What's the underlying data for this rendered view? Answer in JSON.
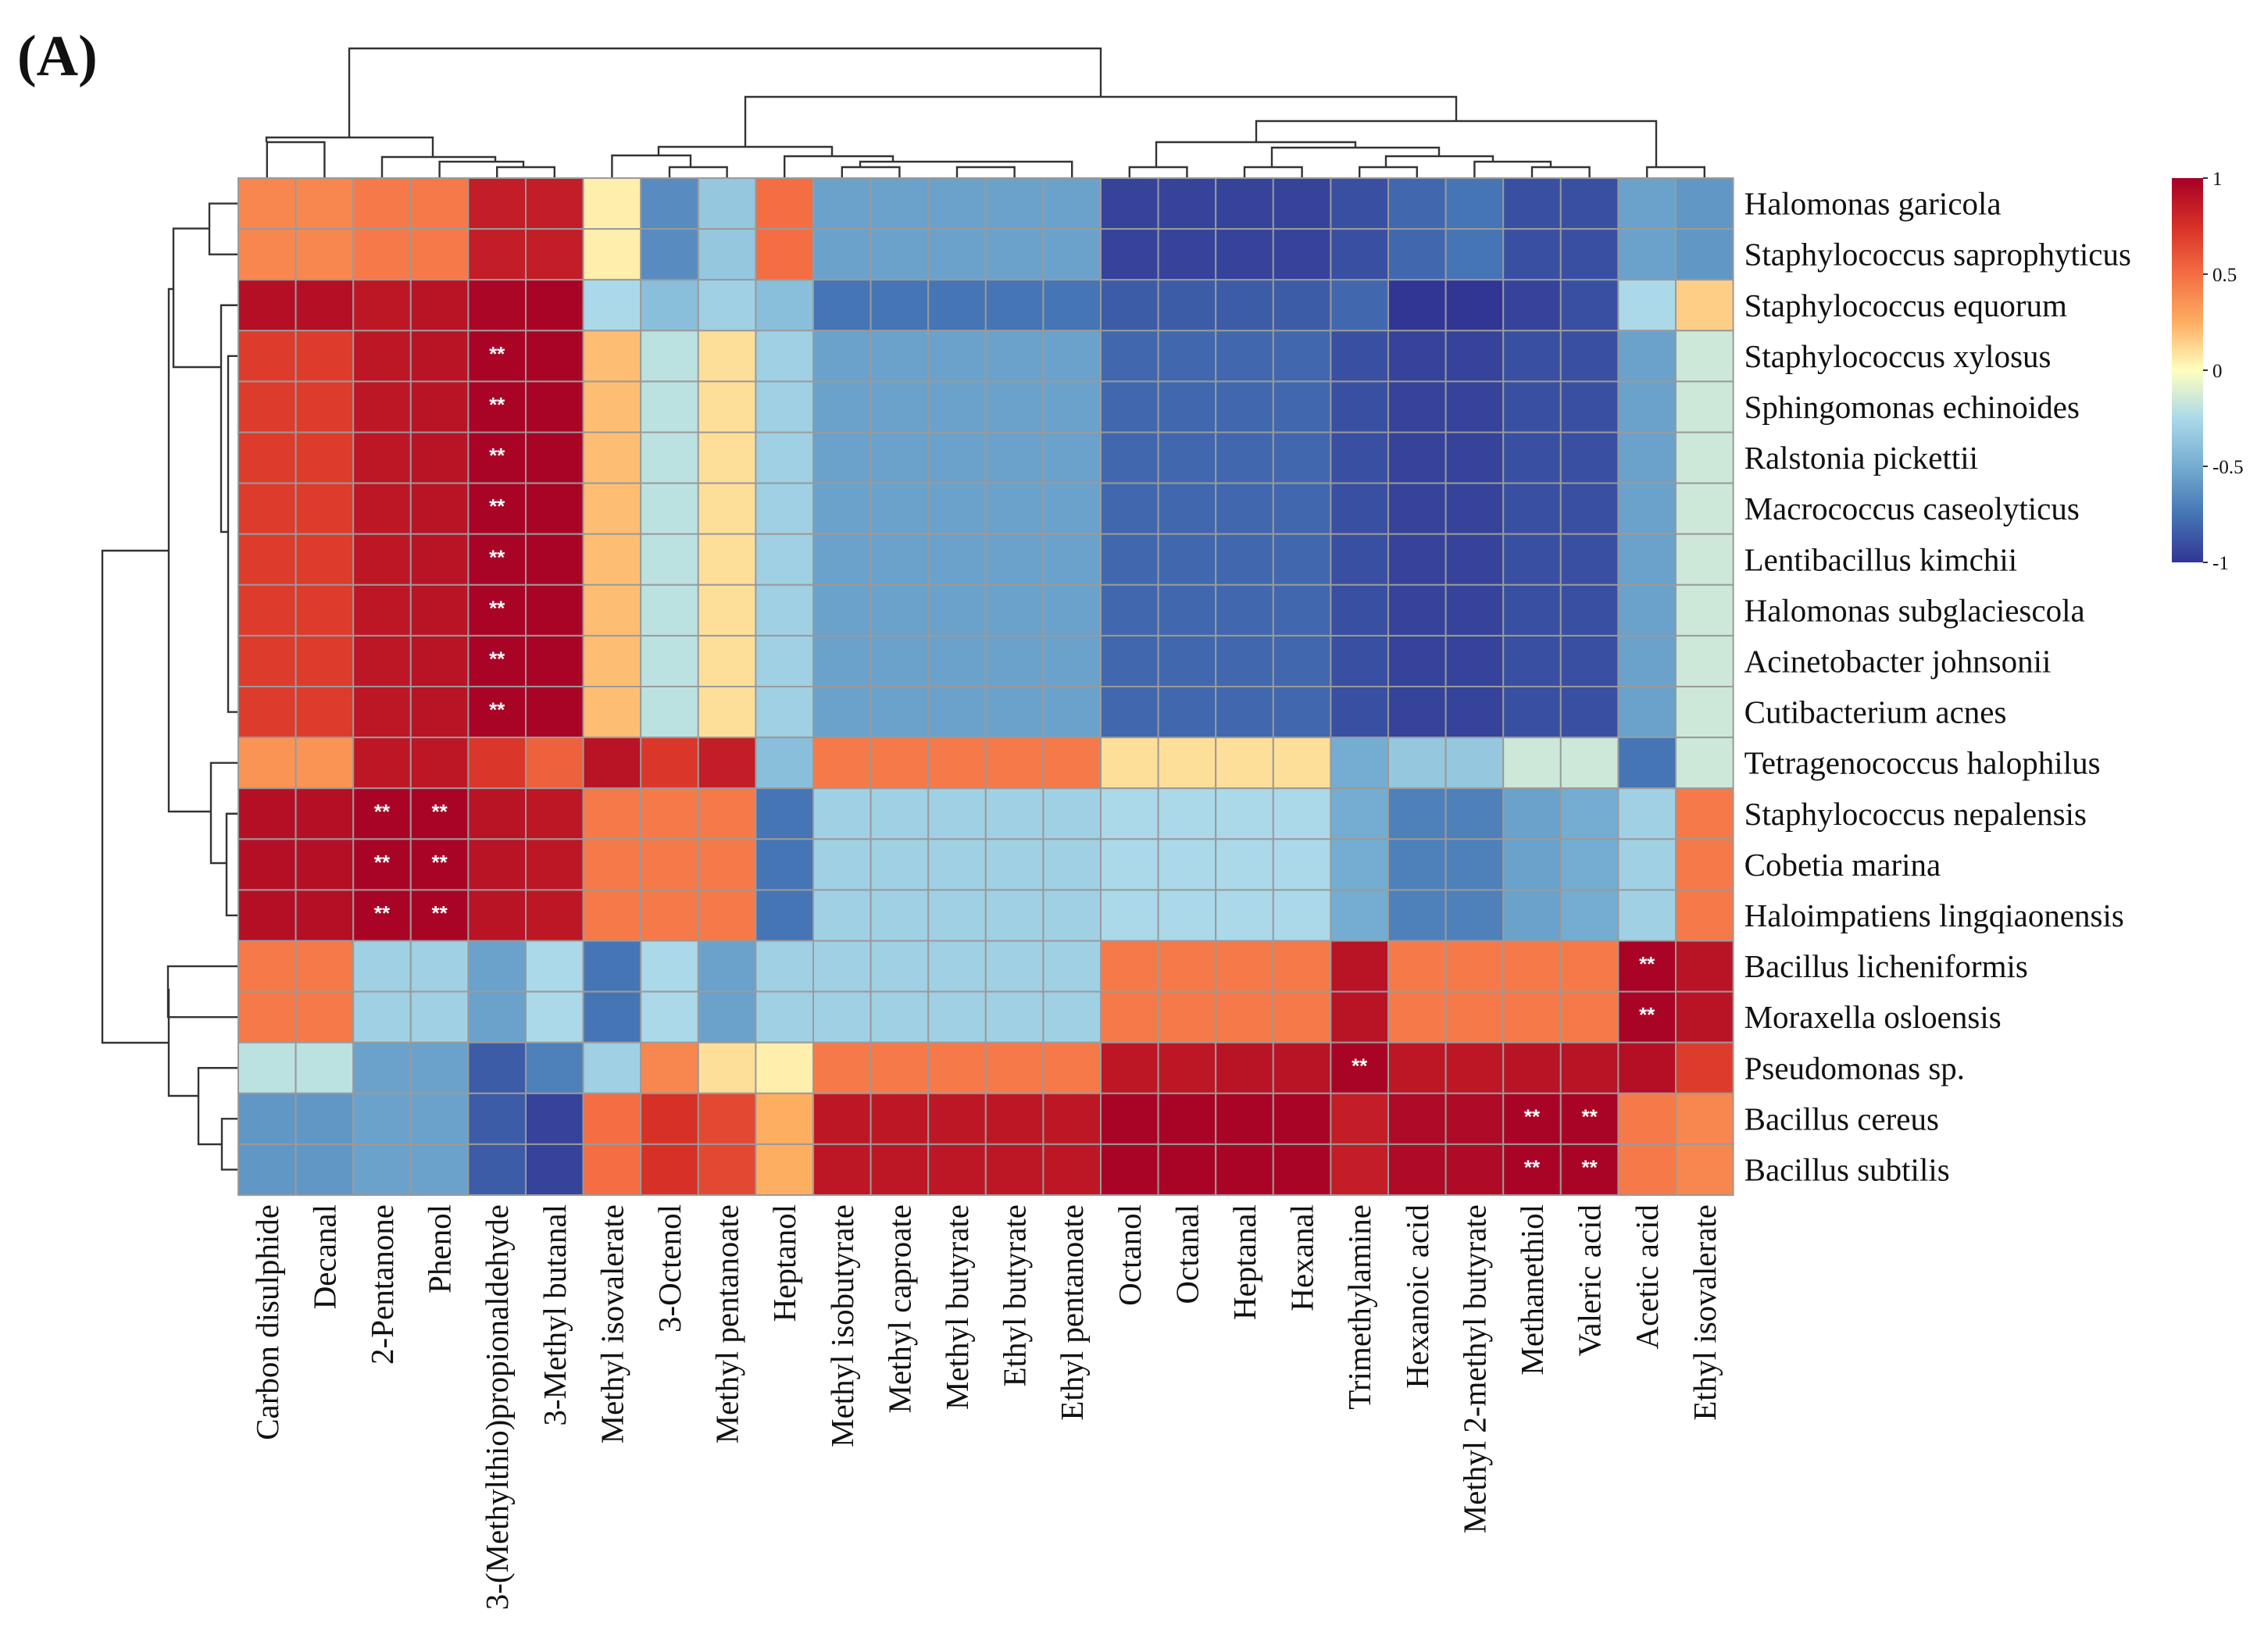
{
  "panel_label": "(A)",
  "chart_data": {
    "type": "heatmap",
    "title": "",
    "rows": [
      "Halomonas garicola",
      "Staphylococcus saprophyticus",
      "Staphylococcus equorum",
      "Staphylococcus xylosus",
      "Sphingomonas echinoides",
      "Ralstonia pickettii",
      "Macrococcus caseolyticus",
      "Lentibacillus kimchii",
      "Halomonas subglaciescola",
      "Acinetobacter johnsonii",
      "Cutibacterium acnes",
      "Tetragenococcus halophilus",
      "Staphylococcus nepalensis",
      "Cobetia marina",
      "Haloimpatiens lingqiaonensis",
      "Bacillus licheniformis",
      "Moraxella osloensis",
      "Pseudomonas sp.",
      "Bacillus cereus",
      "Bacillus subtilis"
    ],
    "columns": [
      "Carbon disulphide",
      "Decanal",
      "2-Pentanone",
      "Phenol",
      "3-(Methylthio)propionaldehyde",
      "3-Methyl butanal",
      "Methyl isovalerate",
      "3-Octenol",
      "Methyl pentanoate",
      "Heptanol",
      "Methyl isobutyrate",
      "Methyl caproate",
      "Methyl butyrate",
      "Ethyl butyrate",
      "Ethyl pentanoate",
      "Octanol",
      "Octanal",
      "Heptanal",
      "Hexanal",
      "Trimethylamine",
      "Hexanoic acid",
      "Methyl 2-methyl butyrate",
      "Methanethiol",
      "Valeric acid",
      "Acetic acid",
      "Ethyl isovalerate"
    ],
    "values": [
      [
        0.4,
        0.4,
        0.45,
        0.45,
        0.85,
        0.85,
        0.05,
        -0.65,
        -0.35,
        0.5,
        -0.55,
        -0.55,
        -0.55,
        -0.55,
        -0.55,
        -0.95,
        -0.95,
        -0.95,
        -0.95,
        -0.9,
        -0.8,
        -0.75,
        -0.9,
        -0.9,
        -0.55,
        -0.6
      ],
      [
        0.4,
        0.4,
        0.45,
        0.45,
        0.85,
        0.85,
        0.05,
        -0.65,
        -0.35,
        0.5,
        -0.55,
        -0.55,
        -0.55,
        -0.55,
        -0.55,
        -0.95,
        -0.95,
        -0.95,
        -0.95,
        -0.9,
        -0.8,
        -0.75,
        -0.9,
        -0.9,
        -0.55,
        -0.6
      ],
      [
        0.92,
        0.92,
        0.88,
        0.9,
        0.97,
        0.98,
        -0.25,
        -0.4,
        -0.3,
        -0.4,
        -0.75,
        -0.75,
        -0.75,
        -0.75,
        -0.75,
        -0.85,
        -0.85,
        -0.85,
        -0.85,
        -0.8,
        -1.0,
        -1.0,
        -0.95,
        -0.9,
        -0.25,
        0.15
      ],
      [
        0.7,
        0.7,
        0.88,
        0.9,
        0.98,
        0.98,
        0.2,
        -0.2,
        0.1,
        -0.3,
        -0.55,
        -0.55,
        -0.55,
        -0.55,
        -0.55,
        -0.8,
        -0.8,
        -0.8,
        -0.8,
        -0.9,
        -0.95,
        -0.95,
        -0.9,
        -0.9,
        -0.55,
        -0.15
      ],
      [
        0.7,
        0.7,
        0.88,
        0.9,
        0.98,
        0.98,
        0.2,
        -0.2,
        0.1,
        -0.3,
        -0.55,
        -0.55,
        -0.55,
        -0.55,
        -0.55,
        -0.8,
        -0.8,
        -0.8,
        -0.8,
        -0.9,
        -0.95,
        -0.95,
        -0.9,
        -0.9,
        -0.55,
        -0.15
      ],
      [
        0.7,
        0.7,
        0.88,
        0.9,
        0.98,
        0.98,
        0.2,
        -0.2,
        0.1,
        -0.3,
        -0.55,
        -0.55,
        -0.55,
        -0.55,
        -0.55,
        -0.8,
        -0.8,
        -0.8,
        -0.8,
        -0.9,
        -0.95,
        -0.95,
        -0.9,
        -0.9,
        -0.55,
        -0.15
      ],
      [
        0.7,
        0.7,
        0.88,
        0.9,
        0.98,
        0.98,
        0.2,
        -0.2,
        0.1,
        -0.3,
        -0.55,
        -0.55,
        -0.55,
        -0.55,
        -0.55,
        -0.8,
        -0.8,
        -0.8,
        -0.8,
        -0.9,
        -0.95,
        -0.95,
        -0.9,
        -0.9,
        -0.55,
        -0.15
      ],
      [
        0.7,
        0.7,
        0.88,
        0.9,
        0.98,
        0.98,
        0.2,
        -0.2,
        0.1,
        -0.3,
        -0.55,
        -0.55,
        -0.55,
        -0.55,
        -0.55,
        -0.8,
        -0.8,
        -0.8,
        -0.8,
        -0.9,
        -0.95,
        -0.95,
        -0.9,
        -0.9,
        -0.55,
        -0.15
      ],
      [
        0.7,
        0.7,
        0.88,
        0.9,
        0.98,
        0.98,
        0.2,
        -0.2,
        0.1,
        -0.3,
        -0.55,
        -0.55,
        -0.55,
        -0.55,
        -0.55,
        -0.8,
        -0.8,
        -0.8,
        -0.8,
        -0.9,
        -0.95,
        -0.95,
        -0.9,
        -0.9,
        -0.55,
        -0.15
      ],
      [
        0.7,
        0.7,
        0.88,
        0.9,
        0.98,
        0.98,
        0.2,
        -0.2,
        0.1,
        -0.3,
        -0.55,
        -0.55,
        -0.55,
        -0.55,
        -0.55,
        -0.8,
        -0.8,
        -0.8,
        -0.8,
        -0.9,
        -0.95,
        -0.95,
        -0.9,
        -0.9,
        -0.55,
        -0.15
      ],
      [
        0.7,
        0.7,
        0.88,
        0.9,
        0.98,
        0.98,
        0.2,
        -0.2,
        0.1,
        -0.3,
        -0.55,
        -0.55,
        -0.55,
        -0.55,
        -0.55,
        -0.8,
        -0.8,
        -0.8,
        -0.8,
        -0.9,
        -0.95,
        -0.95,
        -0.9,
        -0.9,
        -0.55,
        -0.15
      ],
      [
        0.35,
        0.35,
        0.88,
        0.88,
        0.72,
        0.55,
        0.9,
        0.72,
        0.85,
        -0.4,
        0.45,
        0.45,
        0.45,
        0.45,
        0.45,
        0.1,
        0.1,
        0.1,
        0.1,
        -0.5,
        -0.35,
        -0.35,
        -0.15,
        -0.15,
        -0.75,
        -0.15
      ],
      [
        0.92,
        0.92,
        0.98,
        0.98,
        0.9,
        0.88,
        0.45,
        0.45,
        0.45,
        -0.75,
        -0.3,
        -0.3,
        -0.3,
        -0.3,
        -0.3,
        -0.25,
        -0.25,
        -0.25,
        -0.25,
        -0.5,
        -0.7,
        -0.7,
        -0.55,
        -0.5,
        -0.3,
        0.45
      ],
      [
        0.92,
        0.92,
        0.98,
        0.98,
        0.9,
        0.88,
        0.45,
        0.45,
        0.45,
        -0.75,
        -0.3,
        -0.3,
        -0.3,
        -0.3,
        -0.3,
        -0.25,
        -0.25,
        -0.25,
        -0.25,
        -0.5,
        -0.7,
        -0.7,
        -0.55,
        -0.5,
        -0.3,
        0.45
      ],
      [
        0.92,
        0.92,
        0.98,
        0.98,
        0.9,
        0.88,
        0.45,
        0.45,
        0.45,
        -0.75,
        -0.3,
        -0.3,
        -0.3,
        -0.3,
        -0.3,
        -0.25,
        -0.25,
        -0.25,
        -0.25,
        -0.5,
        -0.7,
        -0.7,
        -0.55,
        -0.5,
        -0.3,
        0.45
      ],
      [
        0.45,
        0.45,
        -0.3,
        -0.3,
        -0.55,
        -0.25,
        -0.75,
        -0.25,
        -0.55,
        -0.3,
        -0.3,
        -0.3,
        -0.3,
        -0.3,
        -0.3,
        0.45,
        0.45,
        0.45,
        0.45,
        0.9,
        0.45,
        0.45,
        0.45,
        0.45,
        0.98,
        0.9
      ],
      [
        0.45,
        0.45,
        -0.3,
        -0.3,
        -0.55,
        -0.25,
        -0.75,
        -0.25,
        -0.55,
        -0.3,
        -0.3,
        -0.3,
        -0.3,
        -0.3,
        -0.3,
        0.45,
        0.45,
        0.45,
        0.45,
        0.9,
        0.45,
        0.45,
        0.45,
        0.45,
        0.98,
        0.9
      ],
      [
        -0.2,
        -0.2,
        -0.55,
        -0.55,
        -0.85,
        -0.7,
        -0.3,
        0.4,
        0.1,
        0.05,
        0.45,
        0.45,
        0.45,
        0.45,
        0.45,
        0.88,
        0.88,
        0.9,
        0.9,
        0.98,
        0.88,
        0.88,
        0.9,
        0.9,
        0.92,
        0.7
      ],
      [
        -0.6,
        -0.6,
        -0.55,
        -0.55,
        -0.85,
        -0.95,
        0.5,
        0.75,
        0.65,
        0.25,
        0.88,
        0.88,
        0.88,
        0.88,
        0.88,
        0.98,
        0.98,
        0.98,
        0.98,
        0.85,
        0.95,
        0.95,
        0.98,
        0.98,
        0.45,
        0.4
      ],
      [
        -0.6,
        -0.6,
        -0.55,
        -0.55,
        -0.85,
        -0.95,
        0.5,
        0.75,
        0.65,
        0.25,
        0.88,
        0.88,
        0.88,
        0.88,
        0.88,
        0.98,
        0.98,
        0.98,
        0.98,
        0.85,
        0.95,
        0.95,
        0.98,
        0.98,
        0.45,
        0.4
      ]
    ],
    "significance": [
      [
        3,
        4
      ],
      [
        4,
        4
      ],
      [
        5,
        4
      ],
      [
        6,
        4
      ],
      [
        7,
        4
      ],
      [
        8,
        4
      ],
      [
        9,
        4
      ],
      [
        10,
        4
      ],
      [
        12,
        2
      ],
      [
        12,
        3
      ],
      [
        13,
        2
      ],
      [
        13,
        3
      ],
      [
        14,
        2
      ],
      [
        14,
        3
      ],
      [
        15,
        24
      ],
      [
        16,
        24
      ],
      [
        17,
        19
      ],
      [
        18,
        22
      ],
      [
        18,
        23
      ],
      [
        19,
        22
      ],
      [
        19,
        23
      ]
    ],
    "significance_mark": "**",
    "color_scale": {
      "min": -1,
      "max": 1,
      "stops": [
        {
          "value": -1,
          "color": "#313695"
        },
        {
          "value": -0.75,
          "color": "#4575b4"
        },
        {
          "value": -0.5,
          "color": "#74add1"
        },
        {
          "value": -0.25,
          "color": "#abd9e9"
        },
        {
          "value": 0,
          "color": "#ffffbf"
        },
        {
          "value": 0.25,
          "color": "#fdae61"
        },
        {
          "value": 0.5,
          "color": "#f46d43"
        },
        {
          "value": 0.75,
          "color": "#d73027"
        },
        {
          "value": 1,
          "color": "#a50026"
        }
      ],
      "ticks": [
        "1",
        "0.5",
        "0",
        "-0.5",
        "-1"
      ],
      "tick_values": [
        1,
        0.5,
        0,
        -0.5,
        -1
      ]
    },
    "legend_position": "right",
    "cell_border_color": "#9a9a9a",
    "dendrogram_color": "#333333"
  }
}
